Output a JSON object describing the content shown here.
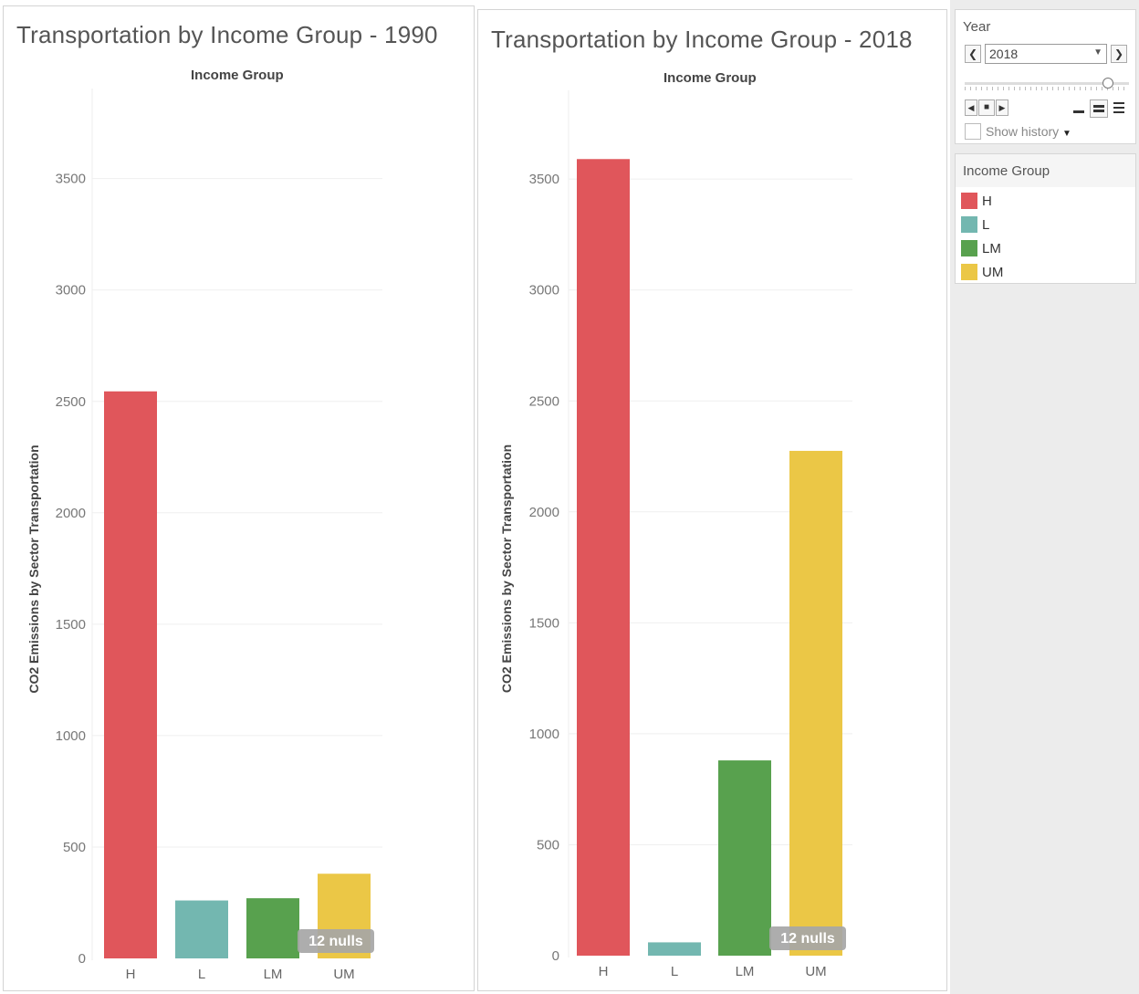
{
  "colors": {
    "H": "#e0565b",
    "L": "#73b7b0",
    "LM": "#58a14e",
    "UM": "#ebc746",
    "null_badge": "#a6a6a6"
  },
  "chart_data": [
    {
      "type": "bar",
      "title": "Transportation by Income Group - 1990",
      "column_header": "Income Group",
      "ylabel": "CO2 Emissions by Sector Transportation",
      "xlabel": "",
      "categories": [
        "H",
        "L",
        "LM",
        "UM"
      ],
      "values": [
        2545,
        260,
        270,
        380
      ],
      "ylim": [
        0,
        3900
      ],
      "yticks": [
        0,
        500,
        1000,
        1500,
        2000,
        2500,
        3000,
        3500
      ],
      "grid": true,
      "annotation": "12 nulls"
    },
    {
      "type": "bar",
      "title": "Transportation by Income Group - 2018",
      "column_header": "Income Group",
      "ylabel": "CO2 Emissions by Sector Transportation",
      "xlabel": "",
      "categories": [
        "H",
        "L",
        "LM",
        "UM"
      ],
      "values": [
        3590,
        60,
        880,
        2275
      ],
      "ylim": [
        0,
        3900
      ],
      "yticks": [
        0,
        500,
        1000,
        1500,
        2000,
        2500,
        3000,
        3500
      ],
      "grid": true,
      "annotation": "12 nulls"
    }
  ],
  "year_filter": {
    "title": "Year",
    "value": "2018",
    "prev_icon": "chevron-left-icon",
    "next_icon": "chevron-right-icon",
    "show_history_label": "Show history"
  },
  "legend": {
    "title": "Income Group",
    "items": [
      {
        "label": "H",
        "color": "#e0565b"
      },
      {
        "label": "L",
        "color": "#73b7b0"
      },
      {
        "label": "LM",
        "color": "#58a14e"
      },
      {
        "label": "UM",
        "color": "#ebc746"
      }
    ]
  }
}
